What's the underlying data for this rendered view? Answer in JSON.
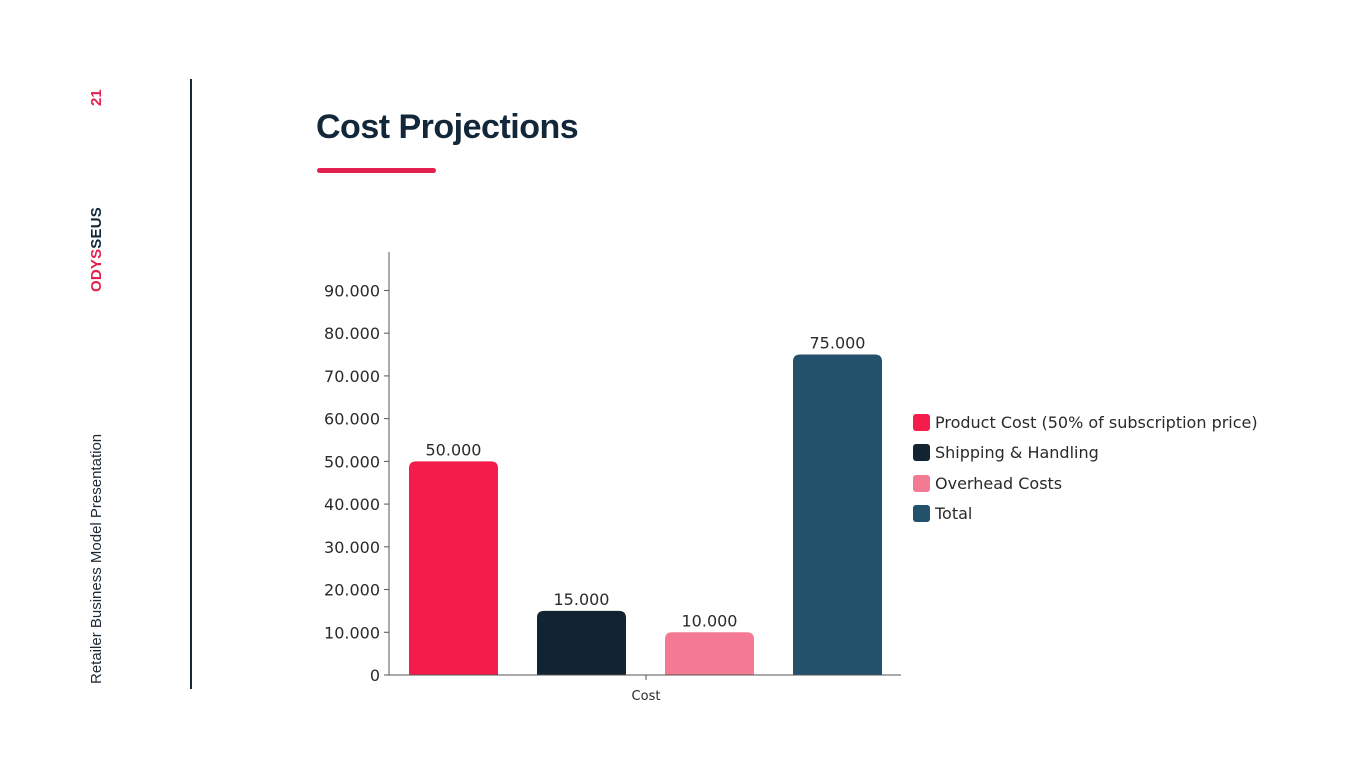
{
  "sidebar": {
    "page_number": "21",
    "brand_part1": "ODYS",
    "brand_part2": "SEUS",
    "subtitle": "Retailer Business Model Presentation"
  },
  "header": {
    "title": "Cost Projections"
  },
  "colors": {
    "accent": "#e3204f",
    "dark": "#13273a"
  },
  "chart_data": {
    "type": "bar",
    "title": "Cost Projections",
    "xlabel": "",
    "ylabel": "",
    "categories": [
      "Cost"
    ],
    "series": [
      {
        "name": "Product Cost (50% of subscription price)",
        "values": [
          50000
        ],
        "label": "50.000",
        "color": "#f41c4b"
      },
      {
        "name": "Shipping & Handling",
        "values": [
          15000
        ],
        "label": "15.000",
        "color": "#122431"
      },
      {
        "name": "Overhead Costs",
        "values": [
          10000
        ],
        "label": "10.000",
        "color": "#f37a92"
      },
      {
        "name": "Total",
        "values": [
          75000
        ],
        "label": "75.000",
        "color": "#23506a"
      }
    ],
    "ylim": [
      0,
      99000
    ],
    "yticks": [
      0,
      10000,
      20000,
      30000,
      40000,
      50000,
      60000,
      70000,
      80000,
      90000
    ],
    "ytick_labels": [
      "0",
      "10.000",
      "20.000",
      "30.000",
      "40.000",
      "50.000",
      "60.000",
      "70.000",
      "80.000",
      "90.000"
    ],
    "grid": false,
    "legend_position": "right"
  }
}
